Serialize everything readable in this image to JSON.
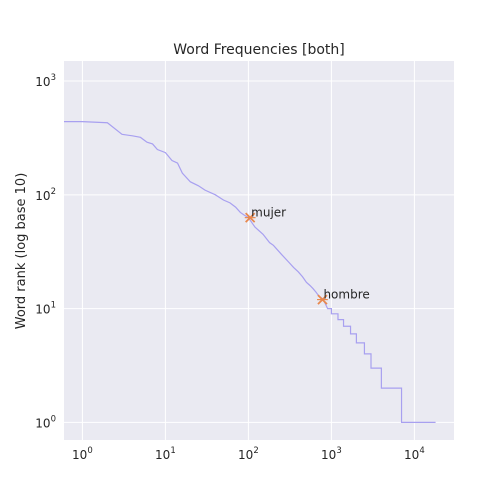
{
  "chart_data": {
    "type": "line",
    "title": "Word Frequencies [both]",
    "xlabel": "",
    "ylabel": "Word rank (log base 10)",
    "xscale": "log",
    "yscale": "log",
    "xlim": [
      0.6,
      30000
    ],
    "ylim": [
      0.7,
      1500
    ],
    "xticks": [
      {
        "base": "10",
        "exp": "0"
      },
      {
        "base": "10",
        "exp": "1"
      },
      {
        "base": "10",
        "exp": "2"
      },
      {
        "base": "10",
        "exp": "3"
      },
      {
        "base": "10",
        "exp": "4"
      }
    ],
    "yticks": [
      {
        "base": "10",
        "exp": "0"
      },
      {
        "base": "10",
        "exp": "1"
      },
      {
        "base": "10",
        "exp": "2"
      },
      {
        "base": "10",
        "exp": "3"
      }
    ],
    "grid": true,
    "background": "#eaeaf2",
    "line_color": "#a8a0f0",
    "marker_color": "#e8884e",
    "series": [
      {
        "x": [
          0.6,
          1,
          2,
          3,
          4,
          5,
          6,
          7,
          8,
          10,
          12,
          14,
          16,
          20,
          25,
          30,
          40,
          50,
          60,
          70,
          80,
          90,
          100,
          120,
          150,
          180,
          200,
          250,
          300,
          350,
          400,
          450,
          500,
          550,
          600,
          650,
          700,
          750,
          800,
          900,
          1000,
          1000,
          1200,
          1200,
          1400,
          1400,
          1700,
          1700,
          2000,
          2000,
          2500,
          2500,
          3000,
          3000,
          4000,
          4000,
          7000,
          7000,
          18000
        ],
        "y": [
          440,
          440,
          430,
          340,
          330,
          320,
          290,
          280,
          250,
          235,
          200,
          190,
          155,
          130,
          120,
          110,
          100,
          90,
          85,
          78,
          70,
          66,
          63,
          52,
          45,
          38,
          36,
          30,
          26,
          23,
          21,
          19,
          17,
          16,
          15,
          14,
          13,
          12.5,
          12,
          10,
          10,
          9,
          9,
          8,
          8,
          7,
          7,
          6,
          6,
          5,
          5,
          4,
          4,
          3,
          3,
          2,
          2,
          1,
          1
        ]
      }
    ],
    "annotations": [
      {
        "label": "mujer",
        "x": 105,
        "y": 63
      },
      {
        "label": "hombre",
        "x": 780,
        "y": 12
      }
    ]
  }
}
